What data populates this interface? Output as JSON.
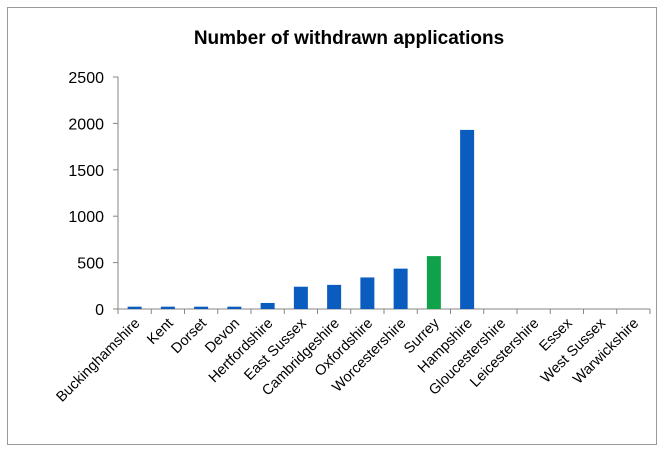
{
  "chart_data": {
    "type": "bar",
    "title": "Number of withdrawn applications",
    "xlabel": "",
    "ylabel": "",
    "ylim": [
      0,
      2500
    ],
    "yticks": [
      0,
      500,
      1000,
      1500,
      2000,
      2500
    ],
    "grid": false,
    "legend": "none",
    "categories": [
      "Buckinghamshire",
      "Kent",
      "Dorset",
      "Devon",
      "Hertfordshire",
      "East Sussex",
      "Cambridgeshire",
      "Oxfordshire",
      "Worcestershire",
      "Surrey",
      "Hampshire",
      "Gloucestershire",
      "Leicestershire",
      "Essex",
      "West Sussex",
      "Warwickshire"
    ],
    "values": [
      25,
      25,
      25,
      25,
      65,
      240,
      260,
      340,
      435,
      570,
      1930,
      0,
      0,
      0,
      0,
      0
    ],
    "colors": {
      "default": "#0a5cbf",
      "highlight": "#0fa24a"
    },
    "highlight_category": "Surrey"
  }
}
